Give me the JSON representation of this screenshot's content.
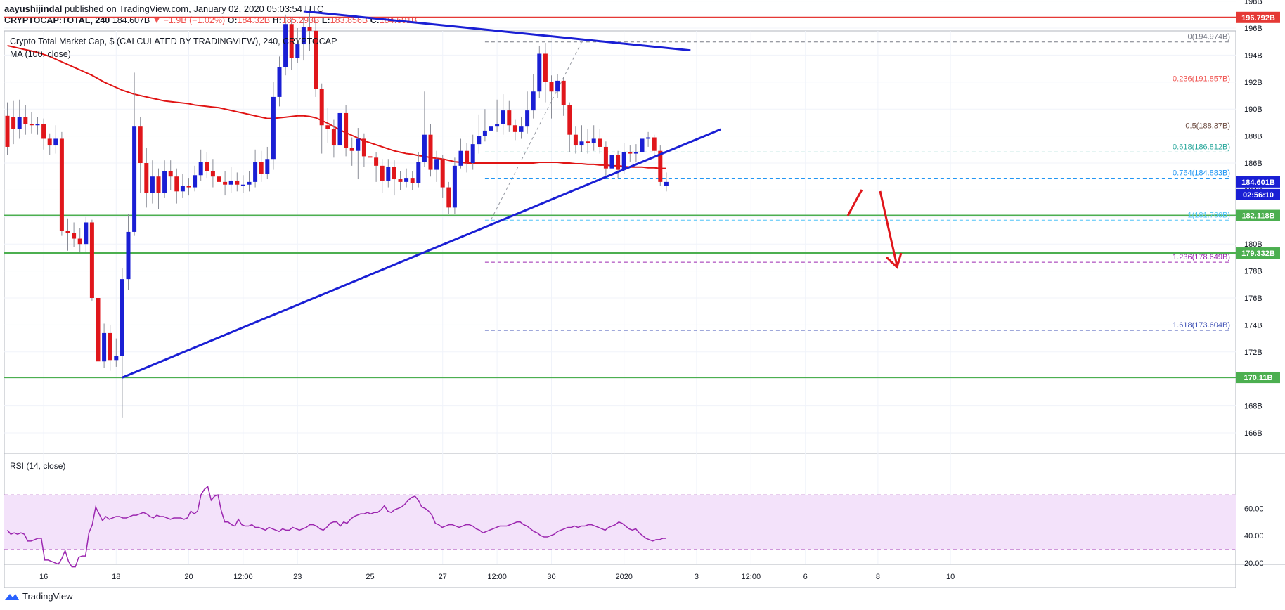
{
  "header": {
    "author": "aayushijindal",
    "published_text": "published on TradingView.com, January 02, 2020 05:03:54 UTC",
    "symbol": "CRYPTOCAP:TOTAL, 240",
    "last": "184.607B",
    "change": "▼ −1.9B (−1.02%)",
    "o_label": "O:",
    "o": "184.32B",
    "h_label": "H:",
    "h": "185.293B",
    "l_label": "L:",
    "l": "183.856B",
    "c_label": "C:",
    "c": "184.601B"
  },
  "chart_title": "Crypto Total Market Cap, $ (CALCULATED BY TRADINGVIEW), 240, CRYPTOCAP",
  "ma_label": "MA (100, close)",
  "rsi_label": "RSI (14, close)",
  "footer": {
    "brand": "TradingView"
  },
  "colors": {
    "up": "#1a1fd4",
    "down": "#e0161b",
    "ma": "#e01414",
    "trendline": "#1a1fd4",
    "support": "#4caf50",
    "resistance": "#e53935",
    "rsi_line": "#9c27b0",
    "rsi_band": "#f3e2fa"
  },
  "chart_data": [
    {
      "type": "candlestick",
      "title": "Crypto Total Market Cap, $ (CALCULATED BY TRADINGVIEW), 240, CRYPTOCAP",
      "unit": "B",
      "ylim": [
        165,
        199
      ],
      "y_ticks": [
        166,
        168,
        170,
        172,
        174,
        176,
        178,
        180,
        182,
        184,
        186,
        188,
        190,
        192,
        194,
        196,
        198
      ],
      "y_tick_labels": [
        "166B",
        "168B",
        "170B",
        "172B",
        "174B",
        "176B",
        "178B",
        "180B",
        "182B",
        "184B",
        "186B",
        "188B",
        "190B",
        "192B",
        "194B",
        "196B",
        "198B"
      ],
      "x_ticks": [
        {
          "bar": 6,
          "label": "16"
        },
        {
          "bar": 18,
          "label": "18"
        },
        {
          "bar": 30,
          "label": "20"
        },
        {
          "bar": 39,
          "label": "12:00"
        },
        {
          "bar": 48,
          "label": "23"
        },
        {
          "bar": 60,
          "label": "25"
        },
        {
          "bar": 72,
          "label": "27"
        },
        {
          "bar": 81,
          "label": "12:00"
        },
        {
          "bar": 90,
          "label": "30"
        },
        {
          "bar": 102,
          "label": "2020"
        },
        {
          "bar": 114,
          "label": "3"
        },
        {
          "bar": 123,
          "label": "12:00"
        },
        {
          "bar": 132,
          "label": "6"
        },
        {
          "bar": 144,
          "label": "8"
        },
        {
          "bar": 156,
          "label": "10"
        }
      ],
      "candles": [
        [
          189.5,
          187.2,
          190.5,
          186.6
        ],
        [
          189.4,
          188.5,
          190.6,
          187.4
        ],
        [
          188.5,
          189.4,
          190.7,
          187.8
        ],
        [
          189.4,
          188.9,
          190.3,
          188.1
        ],
        [
          188.9,
          188.8,
          189.8,
          188.2
        ],
        [
          188.8,
          188.9,
          189.4,
          188.1
        ],
        [
          188.9,
          187.8,
          189.3,
          187.0
        ],
        [
          187.8,
          187.3,
          188.2,
          186.6
        ],
        [
          187.3,
          187.8,
          188.8,
          186.7
        ],
        [
          187.8,
          181.0,
          188.3,
          180.6
        ],
        [
          181.0,
          180.8,
          181.9,
          179.5
        ],
        [
          180.8,
          180.4,
          181.6,
          179.8
        ],
        [
          180.4,
          180.0,
          181.2,
          179.4
        ],
        [
          180.0,
          181.6,
          182.0,
          179.4
        ],
        [
          181.6,
          176.0,
          181.8,
          175.8
        ],
        [
          176.0,
          171.3,
          176.8,
          170.4
        ],
        [
          171.3,
          173.4,
          174.1,
          170.8
        ],
        [
          173.4,
          171.4,
          174.0,
          170.6
        ],
        [
          171.4,
          171.7,
          173.0,
          170.9
        ],
        [
          171.7,
          177.4,
          178.2,
          167.1
        ],
        [
          177.4,
          180.9,
          182.2,
          176.6
        ],
        [
          180.9,
          188.7,
          192.7,
          180.6
        ],
        [
          188.7,
          186.0,
          189.4,
          183.8
        ],
        [
          186.0,
          183.8,
          187.1,
          182.7
        ],
        [
          183.8,
          185.0,
          186.2,
          183.0
        ],
        [
          185.0,
          183.8,
          185.6,
          182.6
        ],
        [
          183.8,
          185.4,
          186.2,
          183.4
        ],
        [
          185.4,
          185.0,
          186.2,
          184.0
        ],
        [
          185.0,
          183.9,
          185.6,
          183.0
        ],
        [
          183.9,
          184.3,
          185.2,
          183.4
        ],
        [
          184.3,
          184.2,
          184.9,
          183.6
        ],
        [
          184.2,
          185.1,
          185.8,
          183.9
        ],
        [
          185.1,
          186.1,
          187.0,
          184.7
        ],
        [
          186.1,
          185.4,
          186.8,
          184.9
        ],
        [
          185.4,
          185.0,
          186.3,
          184.2
        ],
        [
          185.0,
          184.6,
          185.7,
          183.8
        ],
        [
          184.6,
          184.4,
          185.4,
          183.6
        ],
        [
          184.4,
          184.7,
          185.7,
          183.8
        ],
        [
          184.7,
          184.4,
          185.3,
          183.9
        ],
        [
          184.4,
          184.4,
          185.1,
          183.8
        ],
        [
          184.4,
          184.6,
          185.4,
          183.9
        ],
        [
          184.6,
          186.1,
          187.0,
          184.2
        ],
        [
          186.1,
          185.2,
          186.9,
          184.6
        ],
        [
          185.2,
          186.3,
          187.2,
          184.8
        ],
        [
          186.3,
          190.9,
          192.0,
          185.5
        ],
        [
          190.9,
          193.1,
          193.9,
          190.2
        ],
        [
          193.1,
          196.3,
          197.0,
          192.5
        ],
        [
          196.3,
          193.8,
          196.7,
          192.9
        ],
        [
          193.8,
          194.8,
          196.0,
          193.4
        ],
        [
          194.8,
          196.1,
          196.8,
          193.6
        ],
        [
          196.1,
          195.8,
          197.4,
          194.3
        ],
        [
          195.8,
          191.5,
          196.6,
          190.9
        ],
        [
          191.5,
          188.8,
          191.9,
          186.7
        ],
        [
          188.8,
          188.5,
          190.1,
          187.5
        ],
        [
          188.5,
          187.3,
          189.2,
          186.4
        ],
        [
          187.3,
          189.7,
          190.4,
          186.8
        ],
        [
          189.7,
          187.1,
          190.3,
          186.5
        ],
        [
          187.1,
          186.9,
          187.9,
          185.8
        ],
        [
          186.9,
          187.8,
          188.6,
          184.8
        ],
        [
          187.8,
          186.5,
          188.2,
          185.7
        ],
        [
          186.5,
          186.4,
          187.3,
          185.4
        ],
        [
          186.4,
          185.8,
          186.8,
          184.6
        ],
        [
          185.8,
          184.7,
          186.3,
          183.8
        ],
        [
          184.7,
          185.7,
          186.3,
          184.2
        ],
        [
          185.7,
          184.8,
          186.2,
          183.6
        ],
        [
          184.8,
          184.6,
          185.4,
          184.0
        ],
        [
          184.6,
          184.9,
          185.6,
          184.2
        ],
        [
          184.9,
          184.5,
          185.4,
          184.0
        ],
        [
          184.5,
          186.1,
          186.8,
          184.2
        ],
        [
          186.1,
          188.1,
          191.3,
          185.7
        ],
        [
          188.1,
          185.5,
          188.9,
          185.0
        ],
        [
          185.5,
          186.3,
          186.9,
          184.6
        ],
        [
          186.3,
          184.2,
          186.6,
          183.4
        ],
        [
          184.2,
          182.7,
          184.6,
          182.2
        ],
        [
          182.7,
          185.8,
          186.4,
          182.2
        ],
        [
          185.8,
          186.9,
          187.8,
          185.6
        ],
        [
          186.9,
          186.0,
          187.5,
          185.3
        ],
        [
          186.0,
          187.4,
          188.1,
          185.5
        ],
        [
          187.4,
          188.0,
          189.6,
          186.7
        ],
        [
          188.0,
          188.4,
          190.0,
          187.6
        ],
        [
          188.4,
          188.7,
          190.2,
          187.9
        ],
        [
          188.7,
          188.9,
          190.7,
          188.3
        ],
        [
          188.9,
          189.9,
          191.1,
          188.1
        ],
        [
          189.9,
          188.8,
          190.6,
          188.3
        ],
        [
          188.8,
          188.3,
          189.2,
          187.7
        ],
        [
          188.3,
          188.7,
          189.4,
          187.8
        ],
        [
          188.7,
          189.9,
          191.3,
          188.2
        ],
        [
          189.9,
          191.3,
          192.6,
          189.3
        ],
        [
          191.3,
          194.1,
          194.7,
          190.8
        ],
        [
          194.1,
          192.0,
          194.9,
          190.5
        ],
        [
          192.0,
          191.3,
          192.5,
          189.3
        ],
        [
          191.3,
          192.1,
          192.6,
          190.8
        ],
        [
          192.1,
          190.3,
          192.4,
          189.5
        ],
        [
          190.3,
          188.1,
          190.5,
          186.8
        ],
        [
          188.1,
          187.3,
          188.7,
          186.7
        ],
        [
          187.3,
          187.6,
          188.8,
          186.8
        ],
        [
          187.6,
          187.5,
          188.5,
          186.7
        ],
        [
          187.5,
          187.8,
          188.8,
          186.9
        ],
        [
          187.8,
          187.2,
          188.5,
          186.7
        ],
        [
          187.2,
          185.6,
          187.6,
          185.0
        ],
        [
          185.6,
          186.6,
          187.3,
          185.5
        ],
        [
          186.6,
          185.5,
          186.9,
          184.9
        ],
        [
          185.5,
          186.8,
          187.5,
          185.2
        ],
        [
          186.8,
          186.7,
          187.3,
          186.1
        ],
        [
          186.7,
          186.8,
          187.4,
          186.1
        ],
        [
          186.8,
          187.8,
          188.6,
          186.4
        ],
        [
          187.8,
          187.9,
          188.3,
          187.2
        ],
        [
          187.9,
          186.9,
          188.1,
          186.5
        ],
        [
          186.9,
          184.6,
          187.3,
          184.3
        ],
        [
          184.3,
          184.6,
          185.3,
          183.9
        ]
      ],
      "ma_100": [
        194.7,
        194.6,
        194.5,
        194.4,
        194.3,
        194.2,
        194.05,
        193.9,
        193.7,
        193.5,
        193.3,
        193.1,
        192.9,
        192.7,
        192.5,
        192.25,
        192.0,
        191.8,
        191.6,
        191.4,
        191.25,
        191.1,
        191.0,
        190.9,
        190.8,
        190.7,
        190.6,
        190.55,
        190.5,
        190.45,
        190.4,
        190.3,
        190.25,
        190.2,
        190.15,
        190.1,
        190.0,
        189.9,
        189.8,
        189.7,
        189.6,
        189.5,
        189.4,
        189.3,
        189.3,
        189.35,
        189.4,
        189.45,
        189.5,
        189.5,
        189.45,
        189.35,
        189.15,
        188.95,
        188.7,
        188.45,
        188.25,
        188.05,
        187.85,
        187.65,
        187.5,
        187.35,
        187.2,
        187.05,
        186.9,
        186.8,
        186.7,
        186.65,
        186.55,
        186.5,
        186.4,
        186.35,
        186.3,
        186.2,
        186.1,
        186.05,
        186.0,
        186.0,
        186.0,
        186.0,
        186.0,
        186.0,
        186.0,
        186.0,
        186.0,
        186.0,
        186.0,
        186.0,
        186.05,
        186.05,
        186.05,
        186.05,
        186.0,
        186.0,
        185.95,
        185.95,
        185.9,
        185.9,
        185.85,
        185.85,
        185.8,
        185.8,
        185.75,
        185.7,
        185.7,
        185.7,
        185.65,
        185.65,
        185.6,
        185.6
      ],
      "price_labels": [
        {
          "value": 196.792,
          "label": "196.792B",
          "color": "#e53935"
        },
        {
          "value": 184.601,
          "label": "184.601B",
          "color": "#1a1fd4"
        },
        {
          "value": 182.118,
          "label": "182.118B",
          "color": "#4caf50"
        },
        {
          "value": 179.332,
          "label": "179.332B",
          "color": "#4caf50"
        },
        {
          "value": 170.11,
          "label": "170.11B",
          "color": "#4caf50"
        }
      ],
      "countdown_label": "02:56:10",
      "horizontal_lines": [
        {
          "value": 196.792,
          "kind": "resistance"
        },
        {
          "value": 182.118,
          "kind": "support"
        },
        {
          "value": 179.332,
          "kind": "support"
        },
        {
          "value": 170.11,
          "kind": "support"
        }
      ],
      "fibonacci": [
        {
          "value": 194.974,
          "label": "0(194.974B)",
          "color": "#787b86"
        },
        {
          "value": 191.857,
          "label": "0.236(191.857B)",
          "color": "#ef5350"
        },
        {
          "value": 188.37,
          "label": "0.5(188.37B)",
          "color": "#6d4c41"
        },
        {
          "value": 186.812,
          "label": "0.618(186.812B)",
          "color": "#26a69a"
        },
        {
          "value": 184.883,
          "label": "0.764(184.883B)",
          "color": "#2196f3"
        },
        {
          "value": 181.766,
          "label": "1(181.766B)",
          "color": "#4fc3f7"
        },
        {
          "value": 178.649,
          "label": "1.236(178.649B)",
          "color": "#9c27b0"
        },
        {
          "value": 173.604,
          "label": "1.618(173.604B)",
          "color": "#3f51b5"
        }
      ],
      "trendlines": [
        {
          "from": [
            49,
            197.25
          ],
          "to": [
            113,
            194.35
          ]
        },
        {
          "from": [
            19,
            170.1
          ],
          "to": [
            118,
            188.5
          ]
        }
      ]
    },
    {
      "type": "line",
      "title": "RSI (14, close)",
      "ylim": [
        15,
        75
      ],
      "band": [
        30,
        70
      ],
      "y_ticks": [
        20,
        40,
        60
      ],
      "y_tick_labels": [
        "20.00",
        "40.00",
        "60.00"
      ],
      "values": [
        44,
        41,
        42,
        41,
        42,
        41,
        36,
        36,
        37,
        38,
        38,
        22,
        22,
        21,
        20,
        19,
        23,
        29,
        21,
        17,
        17,
        24,
        25,
        25,
        42,
        48,
        61,
        56,
        51,
        54,
        52,
        53,
        54,
        54,
        53,
        53,
        54,
        55,
        55,
        56,
        57,
        56,
        54,
        53,
        55,
        54,
        54,
        53,
        52,
        53,
        53,
        53,
        52,
        53,
        58,
        56,
        58,
        70,
        74,
        76,
        66,
        69,
        70,
        58,
        50,
        50,
        48,
        47,
        52,
        48,
        47,
        47,
        48,
        46,
        46,
        45,
        44,
        46,
        45,
        44,
        43,
        45,
        44,
        44,
        46,
        45,
        44,
        45,
        46,
        48,
        48,
        47,
        45,
        44,
        46,
        49,
        50,
        50,
        47,
        50,
        49,
        52,
        54,
        55,
        56,
        56,
        57,
        56,
        57,
        57,
        59,
        62,
        58,
        57,
        59,
        60,
        61,
        63,
        66,
        68,
        69,
        66,
        61,
        60,
        58,
        55,
        49,
        48,
        46,
        47,
        48,
        48,
        47,
        46,
        47,
        48,
        48,
        47,
        45,
        44,
        42,
        43,
        44,
        45,
        46,
        47,
        47,
        47,
        48,
        49,
        50,
        50,
        48,
        47,
        45,
        43,
        42,
        40,
        39,
        39,
        40,
        41,
        43,
        44,
        45,
        46,
        46,
        47,
        46,
        47,
        47,
        48,
        48,
        47,
        46,
        45,
        44,
        46,
        47,
        48,
        50,
        49,
        47,
        45,
        44,
        45,
        42,
        40,
        38,
        37,
        36,
        37,
        37,
        38,
        38
      ]
    }
  ]
}
